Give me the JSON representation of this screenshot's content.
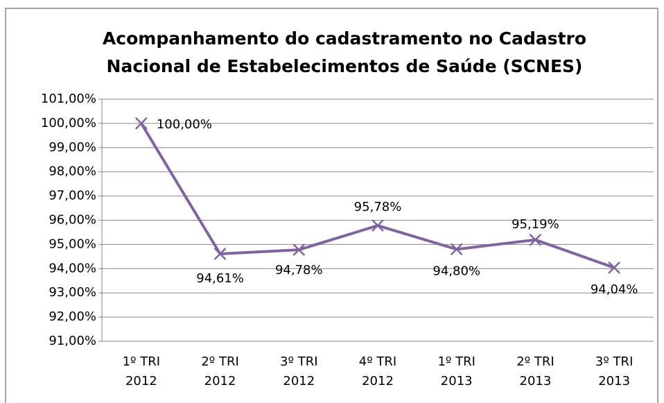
{
  "chart_data": {
    "type": "line",
    "title": "Acompanhamento do cadastramento no Cadastro\nNacional de Estabelecimentos de Saúde (SCNES)",
    "categories": [
      "1º TRI\n2012",
      "2º TRI\n2012",
      "3º TRI\n2012",
      "4º TRI\n2012",
      "1º TRI\n2013",
      "2º TRI\n2013",
      "3º TRI\n2013"
    ],
    "series": [
      {
        "name": "SCNES",
        "color": "#8064a2",
        "values": [
          100,
          94.61,
          94.78,
          95.78,
          94.8,
          95.19,
          94.04
        ],
        "value_labels": [
          "100,00%",
          "94,61%",
          "94,78%",
          "95,78%",
          "94,80%",
          "95,19%",
          "94,04%"
        ]
      }
    ],
    "ylim": [
      91,
      101
    ],
    "yticks": [
      {
        "value": 91,
        "label": "91,00%"
      },
      {
        "value": 92,
        "label": "92,00%"
      },
      {
        "value": 93,
        "label": "93,00%"
      },
      {
        "value": 94,
        "label": "94,00%"
      },
      {
        "value": 95,
        "label": "95,00%"
      },
      {
        "value": 96,
        "label": "96,00%"
      },
      {
        "value": 97,
        "label": "97,00%"
      },
      {
        "value": 98,
        "label": "98,00%"
      },
      {
        "value": 99,
        "label": "99,00%"
      },
      {
        "value": 100,
        "label": "100,00%"
      },
      {
        "value": 101,
        "label": "101,00%"
      }
    ],
    "grid": true
  }
}
